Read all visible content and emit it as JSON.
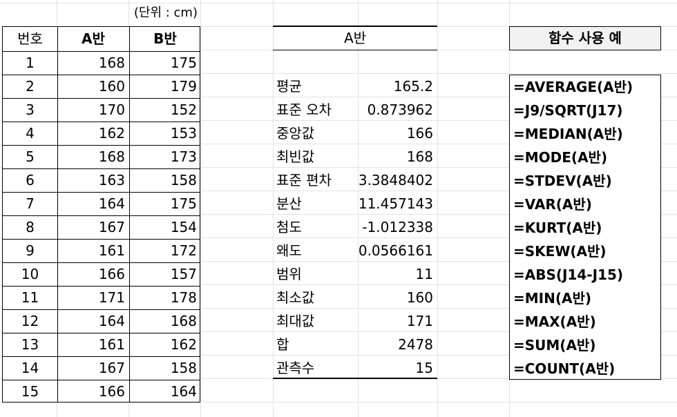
{
  "unit_label": "(단위 : cm)",
  "table": {
    "headers": [
      "번호",
      "A반",
      "B반"
    ],
    "rows": [
      [
        "1",
        "168",
        "175"
      ],
      [
        "2",
        "160",
        "179"
      ],
      [
        "3",
        "170",
        "152"
      ],
      [
        "4",
        "162",
        "153"
      ],
      [
        "5",
        "168",
        "173"
      ],
      [
        "6",
        "163",
        "158"
      ],
      [
        "7",
        "164",
        "175"
      ],
      [
        "8",
        "167",
        "154"
      ],
      [
        "9",
        "161",
        "172"
      ],
      [
        "10",
        "166",
        "157"
      ],
      [
        "11",
        "171",
        "178"
      ],
      [
        "12",
        "164",
        "168"
      ],
      [
        "13",
        "161",
        "162"
      ],
      [
        "14",
        "167",
        "158"
      ],
      [
        "15",
        "166",
        "164"
      ]
    ]
  },
  "stats": {
    "title": "A반",
    "rows": [
      [
        "평균",
        "165.2"
      ],
      [
        "표준 오차",
        "0.873962"
      ],
      [
        "중앙값",
        "166"
      ],
      [
        "최빈값",
        "168"
      ],
      [
        "표준 편차",
        "3.3848402"
      ],
      [
        "분산",
        "11.457143"
      ],
      [
        "첨도",
        "-1.012338"
      ],
      [
        "왜도",
        "0.0566161"
      ],
      [
        "범위",
        "11"
      ],
      [
        "최소값",
        "160"
      ],
      [
        "최대값",
        "171"
      ],
      [
        "합",
        "2478"
      ],
      [
        "관측수",
        "15"
      ]
    ]
  },
  "functions": {
    "title": "함수 사용 예",
    "items": [
      "=AVERAGE(A반)",
      "=J9/SQRT(J17)",
      "=MEDIAN(A반)",
      "=MODE(A반)",
      "=STDEV(A반)",
      "=VAR(A반)",
      "=KURT(A반)",
      "=SKEW(A반)",
      "=ABS(J14-J15)",
      "=MIN(A반)",
      "=MAX(A반)",
      "=SUM(A반)",
      "=COUNT(A반)"
    ]
  }
}
